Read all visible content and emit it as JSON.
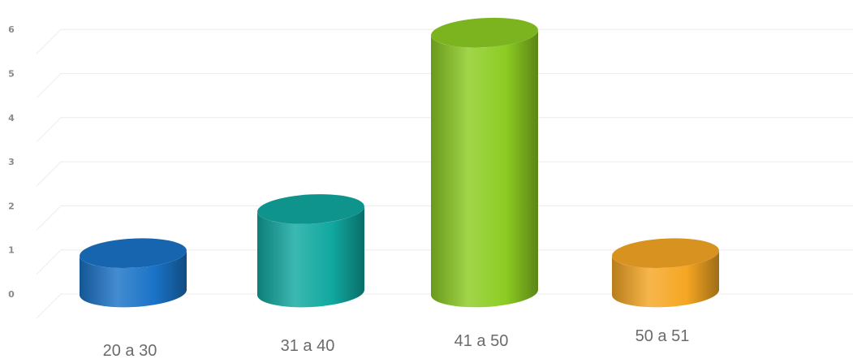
{
  "chart_data": {
    "type": "bar",
    "style": "3d-cylinder",
    "title": "",
    "xlabel": "",
    "ylabel": "",
    "categories": [
      "20 a 30",
      "31 a 40",
      "41 a 50",
      "50 a 51"
    ],
    "values": [
      1,
      2,
      6,
      1
    ],
    "colors": [
      "#1a73c7",
      "#10a8a0",
      "#8ccc22",
      "#f5a623"
    ],
    "ylim": [
      0,
      6
    ],
    "yticks": [
      "0",
      "1",
      "2",
      "3",
      "4",
      "5",
      "6"
    ],
    "grid": true,
    "legend": "none"
  }
}
